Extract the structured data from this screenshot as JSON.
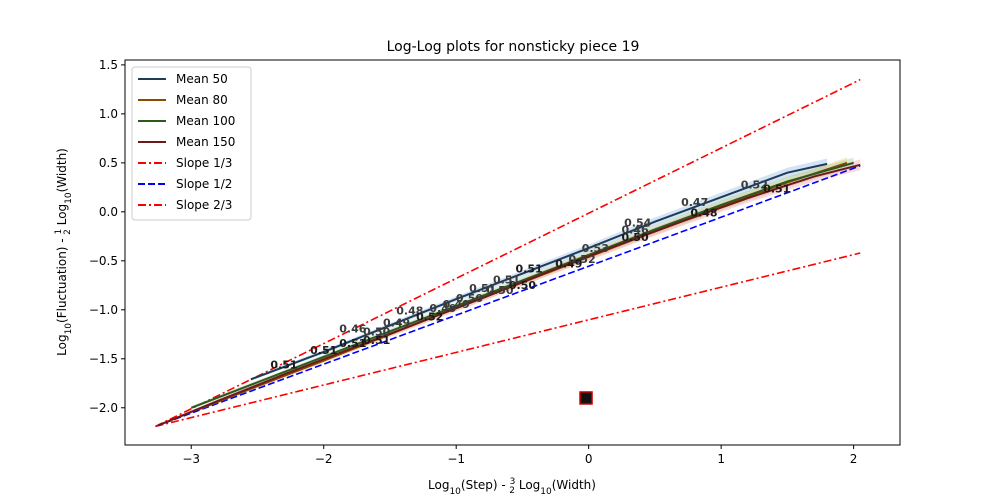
{
  "chart_data": {
    "type": "line",
    "title": "Log-Log plots for nonsticky piece 19",
    "xlabel_main": "Log",
    "xlabel_sub": "10",
    "xlabel_mid": "(Step) - ",
    "xlabel_frac_num": "3",
    "xlabel_frac_den": "2",
    "xlabel_tail_main": " Log",
    "xlabel_tail_sub": "10",
    "xlabel_tail": "(Width)",
    "ylabel_main": "Log",
    "ylabel_sub": "10",
    "ylabel_mid": "(Fluctuation) - ",
    "ylabel_frac_num": "1",
    "ylabel_frac_den": "2",
    "ylabel_tail_main": " Log",
    "ylabel_tail_sub": "10",
    "ylabel_tail": "(Width)",
    "xlim": [
      -3.5,
      2.35
    ],
    "ylim": [
      -2.38,
      1.55
    ],
    "xticks": [
      -3,
      -2,
      -1,
      0,
      1,
      2
    ],
    "xtick_labels": [
      "−3",
      "−2",
      "−1",
      "0",
      "1",
      "2"
    ],
    "yticks": [
      -2.0,
      -1.5,
      -1.0,
      -0.5,
      0.0,
      0.5,
      1.0,
      1.5
    ],
    "ytick_labels": [
      "−2.0",
      "−1.5",
      "−1.0",
      "−0.5",
      "0.0",
      "0.5",
      "1.0",
      "1.5"
    ],
    "legend_position": "upper-left",
    "series": [
      {
        "name": "Mean 50",
        "color": "#1f3b5a",
        "band_color": "#9ec4e6",
        "x": [
          -2.55,
          -2.0,
          -1.5,
          -1.0,
          -0.5,
          0.0,
          0.5,
          1.0,
          1.5,
          1.8
        ],
        "y": [
          -1.71,
          -1.43,
          -1.16,
          -0.89,
          -0.63,
          -0.37,
          -0.1,
          0.15,
          0.4,
          0.49
        ]
      },
      {
        "name": "Mean 80",
        "color": "#8c4a00",
        "band_color": "#f2c98c",
        "x": [
          -2.95,
          -2.5,
          -2.0,
          -1.5,
          -1.0,
          -0.5,
          0.0,
          0.5,
          1.0,
          1.5,
          1.95
        ],
        "y": [
          -2.02,
          -1.78,
          -1.52,
          -1.25,
          -0.98,
          -0.72,
          -0.46,
          -0.2,
          0.06,
          0.3,
          0.5
        ]
      },
      {
        "name": "Mean 100",
        "color": "#2d5a1f",
        "band_color": "#a8d8a0",
        "x": [
          -3.0,
          -2.5,
          -2.0,
          -1.5,
          -1.0,
          -0.5,
          0.0,
          0.5,
          1.0,
          1.5,
          2.0
        ],
        "y": [
          -2.0,
          -1.74,
          -1.48,
          -1.22,
          -0.96,
          -0.7,
          -0.44,
          -0.18,
          0.07,
          0.31,
          0.5
        ]
      },
      {
        "name": "Mean 150",
        "color": "#6b1a1a",
        "band_color": "#f0b0b8",
        "x": [
          -3.25,
          -2.8,
          -2.3,
          -1.8,
          -1.3,
          -0.8,
          -0.3,
          0.2,
          0.7,
          1.2,
          1.7,
          2.05
        ],
        "y": [
          -2.18,
          -1.93,
          -1.66,
          -1.4,
          -1.14,
          -0.88,
          -0.61,
          -0.35,
          -0.1,
          0.14,
          0.36,
          0.48
        ]
      }
    ],
    "reference_lines": [
      {
        "name": "Slope 1/3",
        "color": "#ff0000",
        "style": "dashdot",
        "x": [
          -3.27,
          2.05
        ],
        "y": [
          -2.19,
          -0.42
        ],
        "show_in_legend": true
      },
      {
        "name": "Slope 1/2",
        "color": "#0000ff",
        "style": "dashed",
        "x": [
          -3.27,
          2.05
        ],
        "y": [
          -2.19,
          0.47
        ],
        "show_in_legend": true
      },
      {
        "name": "Slope 2/3",
        "color": "#ff0000",
        "style": "dashdot",
        "x": [
          -3.27,
          2.05
        ],
        "y": [
          -2.19,
          1.35
        ],
        "show_in_legend": true
      }
    ],
    "slope_annotations": [
      {
        "text": "0.51",
        "x": -2.3,
        "y": -1.6,
        "color": "#1a1a1a"
      },
      {
        "text": "0.51",
        "x": -2.0,
        "y": -1.45,
        "color": "#1a1a1a"
      },
      {
        "text": "0.51",
        "x": -1.78,
        "y": -1.38,
        "color": "#1a1a1a"
      },
      {
        "text": "0.51",
        "x": -1.6,
        "y": -1.35,
        "color": "#1a1a1a"
      },
      {
        "text": "0.46",
        "x": -1.78,
        "y": -1.23,
        "color": "#3b3b3b"
      },
      {
        "text": "0.50",
        "x": -1.6,
        "y": -1.26,
        "color": "#3b3b3b"
      },
      {
        "text": "0.49",
        "x": -1.45,
        "y": -1.17,
        "color": "#3b3b3b"
      },
      {
        "text": "0.48",
        "x": -1.35,
        "y": -1.05,
        "color": "#3b3b3b"
      },
      {
        "text": "0.52",
        "x": -1.2,
        "y": -1.11,
        "color": "#1a1a1a"
      },
      {
        "text": "0.49",
        "x": -1.1,
        "y": -1.02,
        "color": "#3b3b3b"
      },
      {
        "text": "0.49",
        "x": -1.0,
        "y": -0.98,
        "color": "#3b3b3b"
      },
      {
        "text": "0.50",
        "x": -0.9,
        "y": -0.92,
        "color": "#3b3b3b"
      },
      {
        "text": "0.51",
        "x": -0.8,
        "y": -0.82,
        "color": "#3b3b3b"
      },
      {
        "text": "0.50",
        "x": -0.67,
        "y": -0.84,
        "color": "#3b3b3b"
      },
      {
        "text": "0.50",
        "x": -0.5,
        "y": -0.79,
        "color": "#1a1a1a"
      },
      {
        "text": "0.51",
        "x": -0.62,
        "y": -0.73,
        "color": "#3b3b3b"
      },
      {
        "text": "0.51",
        "x": -0.45,
        "y": -0.62,
        "color": "#1a1a1a"
      },
      {
        "text": "0.49",
        "x": -0.15,
        "y": -0.57,
        "color": "#1a1a1a"
      },
      {
        "text": "0.52",
        "x": -0.05,
        "y": -0.52,
        "color": "#3b3b3b"
      },
      {
        "text": "0.53",
        "x": 0.05,
        "y": -0.41,
        "color": "#3b3b3b"
      },
      {
        "text": "0.50",
        "x": 0.35,
        "y": -0.3,
        "color": "#1a1a1a"
      },
      {
        "text": "0.46",
        "x": 0.35,
        "y": -0.22,
        "color": "#3b3b3b"
      },
      {
        "text": "0.54",
        "x": 0.37,
        "y": -0.15,
        "color": "#3b3b3b"
      },
      {
        "text": "0.48",
        "x": 0.87,
        "y": -0.05,
        "color": "#1a1a1a"
      },
      {
        "text": "0.47",
        "x": 0.8,
        "y": 0.06,
        "color": "#3b3b3b"
      },
      {
        "text": "0.52",
        "x": 1.25,
        "y": 0.24,
        "color": "#3b3b3b"
      },
      {
        "text": "0.51",
        "x": 1.42,
        "y": 0.2,
        "color": "#1a1a1a"
      }
    ],
    "marker": {
      "x": -0.02,
      "y": -1.9,
      "fill": "#111111",
      "edge": "#cc0000"
    }
  }
}
